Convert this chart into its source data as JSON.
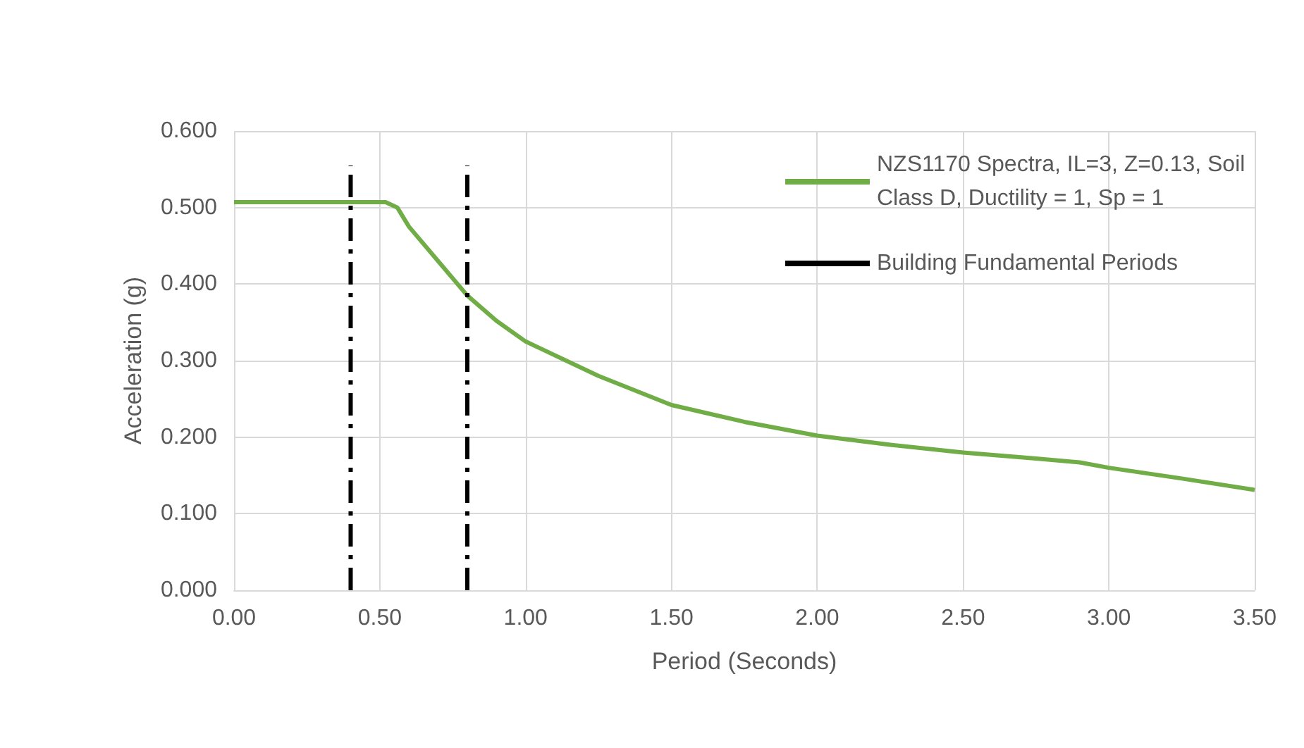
{
  "chart_data": {
    "type": "line",
    "xlabel": "Period (Seconds)",
    "ylabel": "Acceleration (g)",
    "xlim": [
      0,
      3.5
    ],
    "xticks": [
      {
        "value": 0,
        "label": "0.00"
      },
      {
        "value": 0.5,
        "label": "0.50"
      },
      {
        "value": 1,
        "label": "1.00"
      },
      {
        "value": 1.5,
        "label": "1.50"
      },
      {
        "value": 2,
        "label": "2.00"
      },
      {
        "value": 2.5,
        "label": "2.50"
      },
      {
        "value": 3,
        "label": "3.00"
      },
      {
        "value": 3.5,
        "label": "3.50"
      }
    ],
    "ylim": [
      0,
      0.6
    ],
    "yticks": [
      {
        "value": 0,
        "label": "0.000"
      },
      {
        "value": 0.1,
        "label": "0.100"
      },
      {
        "value": 0.2,
        "label": "0.200"
      },
      {
        "value": 0.3,
        "label": "0.300"
      },
      {
        "value": 0.4,
        "label": "0.400"
      },
      {
        "value": 0.5,
        "label": "0.500"
      },
      {
        "value": 0.6,
        "label": "0.600"
      }
    ],
    "grid": true,
    "legend": "top right",
    "marker": "none",
    "series": [
      {
        "name": "NZS1170 Spectra, IL=3, Z=0.13, Soil Class D, Ductility = 1, Sp = 1",
        "color": "#70ad47",
        "line_style": "solid",
        "x": [
          0,
          0.2,
          0.4,
          0.52,
          0.56,
          0.6,
          0.7,
          0.8,
          0.9,
          1.0,
          1.25,
          1.5,
          1.75,
          2.0,
          2.25,
          2.5,
          2.75,
          2.9,
          3.0,
          3.25,
          3.5
        ],
        "values": [
          0.507,
          0.507,
          0.507,
          0.507,
          0.5,
          0.475,
          0.43,
          0.385,
          0.352,
          0.325,
          0.28,
          0.242,
          0.22,
          0.202,
          0.19,
          0.18,
          0.172,
          0.167,
          0.16,
          0.146,
          0.131
        ]
      },
      {
        "name": "Building Fundamental Periods",
        "color": "#000000",
        "line_style": "dashed",
        "x": [
          0.4,
          0.4
        ],
        "values": [
          0,
          0.555
        ]
      },
      {
        "color": "#000000",
        "line_style": "dashed",
        "x": [
          0.8,
          0.8
        ],
        "values": [
          0,
          0.555
        ]
      }
    ]
  }
}
